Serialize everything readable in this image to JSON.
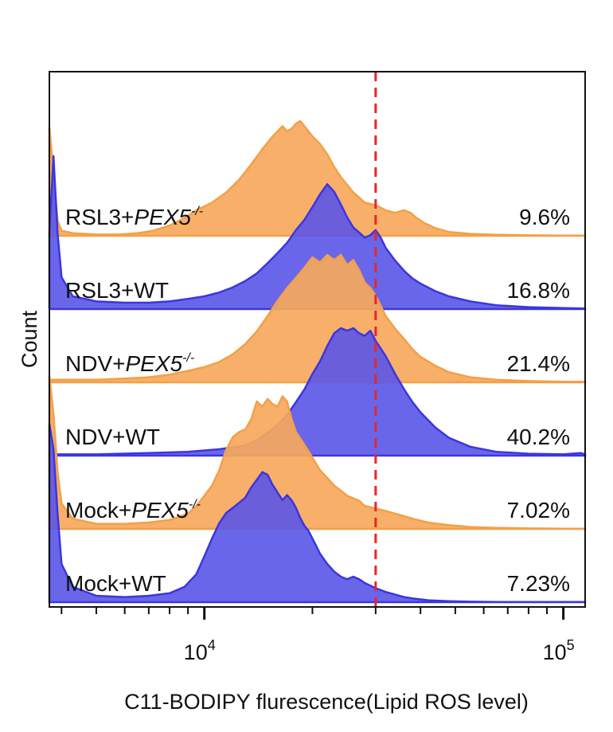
{
  "chart_data": {
    "type": "area",
    "xlabel": "C11-BODIPY flurescence(Lipid ROS level)",
    "ylabel": "Count",
    "x_scale": "log",
    "xlim": [
      3700,
      115000
    ],
    "x_ticks": [
      {
        "value": 10000,
        "base": "10",
        "exp": "4"
      },
      {
        "value": 100000,
        "base": "10",
        "exp": "5"
      }
    ],
    "threshold": {
      "value": 30000,
      "color": "#e8262a",
      "style": "dashed"
    },
    "colors": {
      "PEX5-/-": "#f7a85c",
      "WT": "#5a55e8",
      "outline_pex5": "#f3a047",
      "outline_wt": "#3b36e0"
    },
    "series": [
      {
        "name": "RSL3+PEX5-/-",
        "prefix": "RSL3+",
        "gene": "PEX5",
        "sup": "-/-",
        "pct": "9.6%",
        "color": "PEX5-/-",
        "x": [
          3700,
          3800,
          3900,
          4000,
          4300,
          5000,
          5800,
          6500,
          7200,
          8000,
          8800,
          9500,
          10500,
          11500,
          12500,
          13500,
          14500,
          15500,
          16500,
          17000,
          17500,
          18000,
          18500,
          19000,
          20000,
          21000,
          22000,
          23000,
          24000,
          25000,
          26000,
          27000,
          28000,
          30000,
          32000,
          34000,
          36000,
          37500,
          39000,
          41000,
          44000,
          48000,
          55000,
          65000,
          80000,
          100000,
          115000
        ],
        "y": [
          0.85,
          0.5,
          0.12,
          0.04,
          0.02,
          0.01,
          0.01,
          0.02,
          0.04,
          0.08,
          0.14,
          0.2,
          0.26,
          0.34,
          0.44,
          0.56,
          0.68,
          0.78,
          0.86,
          0.82,
          0.84,
          0.88,
          0.9,
          0.86,
          0.78,
          0.72,
          0.64,
          0.54,
          0.46,
          0.4,
          0.34,
          0.3,
          0.26,
          0.24,
          0.2,
          0.18,
          0.2,
          0.18,
          0.14,
          0.1,
          0.06,
          0.03,
          0.015,
          0.008,
          0.004,
          0.002,
          0.002
        ]
      },
      {
        "name": "RSL3+WT",
        "prefix": "RSL3+",
        "gene": "",
        "sup": "",
        "pct": "16.8%",
        "color": "WT",
        "x": [
          3700,
          3800,
          3900,
          4000,
          4300,
          5000,
          6000,
          7000,
          8000,
          9000,
          10000,
          11000,
          12000,
          13000,
          14000,
          15000,
          16000,
          17000,
          18000,
          19000,
          20000,
          21000,
          22000,
          23000,
          24000,
          25000,
          26000,
          27000,
          28000,
          29000,
          30000,
          31000,
          32000,
          34000,
          36000,
          38000,
          40000,
          44000,
          48000,
          55000,
          65000,
          80000,
          100000,
          115000
        ],
        "y": [
          0.6,
          1.2,
          0.6,
          0.25,
          0.1,
          0.06,
          0.05,
          0.05,
          0.06,
          0.08,
          0.1,
          0.13,
          0.17,
          0.22,
          0.28,
          0.36,
          0.44,
          0.52,
          0.62,
          0.7,
          0.8,
          0.9,
          0.98,
          0.92,
          0.82,
          0.72,
          0.64,
          0.6,
          0.56,
          0.58,
          0.62,
          0.56,
          0.48,
          0.38,
          0.3,
          0.24,
          0.2,
          0.14,
          0.1,
          0.06,
          0.03,
          0.015,
          0.008,
          0.004
        ]
      },
      {
        "name": "NDV+PEX5-/-",
        "prefix": "NDV+",
        "gene": "PEX5",
        "sup": "-/-",
        "pct": "21.4%",
        "color": "PEX5-/-",
        "x": [
          3700,
          4000,
          5000,
          6000,
          7000,
          8000,
          9000,
          10000,
          11000,
          12000,
          13000,
          14000,
          15000,
          16000,
          17000,
          18000,
          19000,
          20000,
          21000,
          22000,
          23000,
          24000,
          25000,
          26000,
          27000,
          28000,
          29000,
          30000,
          31000,
          32000,
          34000,
          36000,
          38000,
          40000,
          44000,
          48000,
          55000,
          65000,
          80000,
          100000,
          115000
        ],
        "y": [
          0.02,
          0.02,
          0.02,
          0.03,
          0.04,
          0.06,
          0.09,
          0.12,
          0.16,
          0.22,
          0.3,
          0.4,
          0.52,
          0.64,
          0.74,
          0.82,
          0.9,
          0.98,
          0.94,
          1.0,
          0.96,
          1.0,
          0.92,
          0.96,
          0.88,
          0.78,
          0.74,
          0.68,
          0.6,
          0.52,
          0.42,
          0.34,
          0.26,
          0.2,
          0.13,
          0.08,
          0.04,
          0.02,
          0.01,
          0.005,
          0.005
        ]
      },
      {
        "name": "NDV+WT",
        "prefix": "NDV+",
        "gene": "",
        "sup": "",
        "pct": "40.2%",
        "color": "WT",
        "x": [
          3700,
          5000,
          7000,
          9000,
          11000,
          13000,
          14000,
          15000,
          16000,
          17000,
          18000,
          19000,
          20000,
          21000,
          22000,
          23000,
          24000,
          25000,
          26000,
          27000,
          28000,
          29000,
          30000,
          31000,
          32000,
          34000,
          36000,
          38000,
          40000,
          44000,
          48000,
          55000,
          65000,
          80000,
          100000,
          112000,
          115000
        ],
        "y": [
          0.01,
          0.01,
          0.02,
          0.03,
          0.05,
          0.08,
          0.12,
          0.18,
          0.24,
          0.32,
          0.42,
          0.52,
          0.64,
          0.74,
          0.86,
          0.96,
          1.0,
          0.98,
          1.0,
          0.96,
          0.94,
          0.98,
          0.9,
          0.84,
          0.78,
          0.64,
          0.52,
          0.42,
          0.34,
          0.22,
          0.14,
          0.07,
          0.03,
          0.015,
          0.01,
          0.02,
          0.01
        ]
      },
      {
        "name": "Mock+PEX5-/-",
        "prefix": "Mock+",
        "gene": "PEX5",
        "sup": "-/-",
        "pct": "7.02%",
        "color": "PEX5-/-",
        "x": [
          3700,
          3800,
          3900,
          4000,
          4300,
          5000,
          6000,
          7000,
          8000,
          9000,
          9500,
          10000,
          10500,
          11000,
          11500,
          12000,
          12500,
          13000,
          13500,
          14000,
          14500,
          15000,
          15500,
          16000,
          16500,
          17000,
          17500,
          18000,
          19000,
          20000,
          21000,
          22000,
          23000,
          24000,
          25000,
          26000,
          27000,
          28000,
          30000,
          32000,
          34000,
          36000,
          38000,
          42000,
          48000,
          55000,
          65000,
          80000,
          100000,
          115000
        ],
        "y": [
          1.2,
          0.9,
          0.45,
          0.2,
          0.08,
          0.04,
          0.04,
          0.05,
          0.07,
          0.12,
          0.18,
          0.26,
          0.34,
          0.46,
          0.62,
          0.72,
          0.76,
          0.78,
          0.86,
          1.0,
          0.96,
          1.02,
          0.98,
          0.96,
          1.04,
          1.0,
          0.86,
          0.76,
          0.66,
          0.56,
          0.46,
          0.4,
          0.34,
          0.3,
          0.26,
          0.24,
          0.22,
          0.18,
          0.16,
          0.14,
          0.12,
          0.1,
          0.08,
          0.05,
          0.03,
          0.015,
          0.008,
          0.004,
          0.002,
          0.002
        ]
      },
      {
        "name": "Mock+WT",
        "prefix": "Mock+",
        "gene": "",
        "sup": "",
        "pct": "7.23%",
        "color": "WT",
        "x": [
          3700,
          3800,
          3900,
          4000,
          4300,
          5000,
          6000,
          7000,
          8000,
          8800,
          9500,
          10000,
          10500,
          11000,
          11500,
          12000,
          12500,
          13000,
          13500,
          14000,
          14500,
          15000,
          15500,
          16000,
          16500,
          17000,
          17500,
          18000,
          18500,
          19000,
          19500,
          20000,
          20500,
          21000,
          22000,
          23000,
          24000,
          25000,
          26000,
          27000,
          28000,
          29000,
          30000,
          32000,
          34000,
          36000,
          38000,
          42000,
          48000,
          55000,
          65000,
          80000,
          100000,
          115000
        ],
        "y": [
          1.4,
          1.2,
          0.7,
          0.3,
          0.12,
          0.05,
          0.04,
          0.05,
          0.07,
          0.12,
          0.22,
          0.36,
          0.5,
          0.62,
          0.7,
          0.74,
          0.78,
          0.82,
          0.9,
          0.96,
          1.02,
          1.0,
          0.92,
          0.86,
          0.8,
          0.84,
          0.8,
          0.74,
          0.66,
          0.6,
          0.56,
          0.5,
          0.44,
          0.38,
          0.3,
          0.24,
          0.2,
          0.18,
          0.2,
          0.18,
          0.15,
          0.13,
          0.11,
          0.08,
          0.06,
          0.04,
          0.03,
          0.015,
          0.008,
          0.004,
          0.002,
          0.001,
          0.001,
          0.001
        ]
      }
    ]
  }
}
